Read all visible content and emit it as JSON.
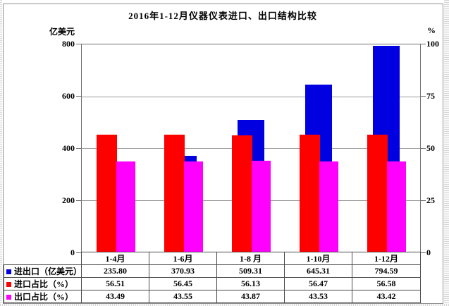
{
  "title": "2016年1-12月仪器仪表进口、出口结构比较",
  "left_axis": {
    "unit": "亿美元",
    "ticks": [
      800,
      600,
      400,
      200,
      0
    ]
  },
  "right_axis": {
    "unit": "%",
    "ticks": [
      100,
      75,
      50,
      25,
      0
    ]
  },
  "chart_data": {
    "type": "bar",
    "title": "2016年1-12月仪器仪表进口、出口结构比较",
    "categories": [
      "1-4月",
      "1-6月",
      "1-8 月",
      "1-10月",
      "1-12月"
    ],
    "series": [
      {
        "key": "total-trade",
        "name": "进出口（亿美元）",
        "axis": "left",
        "color": "#0000e0",
        "values": [
          235.8,
          370.93,
          509.31,
          645.31,
          794.59
        ]
      },
      {
        "key": "import-share",
        "name": "进口占比（%）",
        "axis": "right",
        "color": "#fd0000",
        "values": [
          56.51,
          56.45,
          56.13,
          56.47,
          56.58
        ]
      },
      {
        "key": "export-share",
        "name": "出口占比（%）",
        "axis": "right",
        "color": "#ff00fe",
        "values": [
          43.49,
          43.55,
          43.87,
          43.53,
          43.42
        ]
      }
    ],
    "left_ylim": [
      0,
      800
    ],
    "right_ylim": [
      0,
      100
    ],
    "grid": true,
    "legend_position": "table-bottom"
  }
}
